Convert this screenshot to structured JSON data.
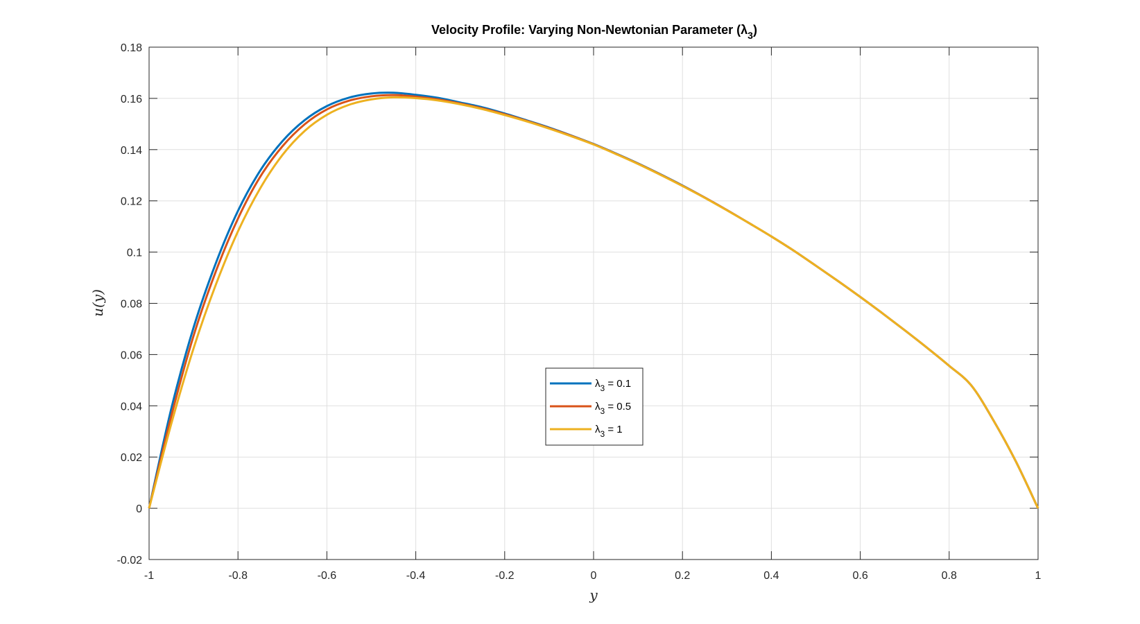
{
  "chart_data": {
    "type": "line",
    "title": "Velocity Profile: Varying Non-Newtonian Parameter (λ",
    "title_sub": "3",
    "title_end": ")",
    "xlabel": "y",
    "ylabel": "u(y)",
    "xlim": [
      -1,
      1
    ],
    "ylim": [
      -0.02,
      0.18
    ],
    "xticks": [
      -1,
      -0.8,
      -0.6,
      -0.4,
      -0.2,
      0,
      0.2,
      0.4,
      0.6,
      0.8,
      1
    ],
    "yticks": [
      -0.02,
      0,
      0.02,
      0.04,
      0.06,
      0.08,
      0.1,
      0.12,
      0.14,
      0.16,
      0.18
    ],
    "xtick_labels": [
      "-1",
      "-0.8",
      "-0.6",
      "-0.4",
      "-0.2",
      "0",
      "0.2",
      "0.4",
      "0.6",
      "0.8",
      "1"
    ],
    "ytick_labels": [
      "-0.02",
      "0",
      "0.02",
      "0.04",
      "0.06",
      "0.08",
      "0.1",
      "0.12",
      "0.14",
      "0.16",
      "0.18"
    ],
    "grid": true,
    "legend_position": "center",
    "series": [
      {
        "name": "λ3 = 0.1",
        "label_symbol": "λ",
        "label_sub": "3",
        "label_value": " = 0.1",
        "color": "#0072BD",
        "x": [
          -1,
          -0.95,
          -0.9,
          -0.85,
          -0.8,
          -0.75,
          -0.7,
          -0.65,
          -0.6,
          -0.55,
          -0.5,
          -0.45,
          -0.4,
          -0.35,
          -0.3,
          -0.25,
          -0.2,
          -0.15,
          -0.1,
          -0.05,
          0,
          0.05,
          0.1,
          0.15,
          0.2,
          0.25,
          0.3,
          0.35,
          0.4,
          0.45,
          0.5,
          0.55,
          0.6,
          0.65,
          0.7,
          0.75,
          0.8,
          0.85,
          0.9,
          0.95,
          1
        ],
        "y": [
          0,
          0.0389,
          0.0705,
          0.0956,
          0.1161,
          0.1318,
          0.1433,
          0.1515,
          0.157,
          0.1603,
          0.1619,
          0.1622,
          0.1614,
          0.1602,
          0.1584,
          0.1565,
          0.1541,
          0.1514,
          0.1486,
          0.1455,
          0.1422,
          0.1385,
          0.1346,
          0.1304,
          0.126,
          0.1213,
          0.1164,
          0.1113,
          0.1061,
          0.1006,
          0.0947,
          0.0887,
          0.0825,
          0.0761,
          0.0695,
          0.0627,
          0.0556,
          0.0479,
          0.0342,
          0.0183,
          0
        ]
      },
      {
        "name": "λ3 = 0.5",
        "label_symbol": "λ",
        "label_sub": "3",
        "label_value": " = 0.5",
        "color": "#D95319",
        "x": [
          -1,
          -0.95,
          -0.9,
          -0.85,
          -0.8,
          -0.75,
          -0.7,
          -0.65,
          -0.6,
          -0.55,
          -0.5,
          -0.45,
          -0.4,
          -0.35,
          -0.3,
          -0.25,
          -0.2,
          -0.15,
          -0.1,
          -0.05,
          0,
          0.05,
          0.1,
          0.15,
          0.2,
          0.25,
          0.3,
          0.35,
          0.4,
          0.45,
          0.5,
          0.55,
          0.6,
          0.65,
          0.7,
          0.75,
          0.8,
          0.85,
          0.9,
          0.95,
          1
        ],
        "y": [
          0,
          0.036,
          0.0673,
          0.0924,
          0.1131,
          0.1294,
          0.1413,
          0.1499,
          0.1557,
          0.1591,
          0.1608,
          0.1613,
          0.1607,
          0.1596,
          0.158,
          0.1561,
          0.1538,
          0.1512,
          0.1484,
          0.1454,
          0.1421,
          0.1384,
          0.1345,
          0.1303,
          0.1259,
          0.1213,
          0.1164,
          0.1113,
          0.1061,
          0.1006,
          0.0947,
          0.0887,
          0.0825,
          0.0761,
          0.0695,
          0.0627,
          0.0556,
          0.0479,
          0.0342,
          0.0183,
          0
        ]
      },
      {
        "name": "λ3 = 1",
        "label_symbol": "λ",
        "label_sub": "3",
        "label_value": " = 1",
        "color": "#EDB120",
        "x": [
          -1,
          -0.95,
          -0.9,
          -0.85,
          -0.8,
          -0.75,
          -0.7,
          -0.65,
          -0.6,
          -0.55,
          -0.5,
          -0.45,
          -0.4,
          -0.35,
          -0.3,
          -0.25,
          -0.2,
          -0.15,
          -0.1,
          -0.05,
          0,
          0.05,
          0.1,
          0.15,
          0.2,
          0.25,
          0.3,
          0.35,
          0.4,
          0.45,
          0.5,
          0.55,
          0.6,
          0.65,
          0.7,
          0.75,
          0.8,
          0.85,
          0.9,
          0.95,
          1
        ],
        "y": [
          0,
          0.033,
          0.0624,
          0.0872,
          0.1081,
          0.1249,
          0.1379,
          0.1473,
          0.1536,
          0.1575,
          0.1596,
          0.1604,
          0.1601,
          0.1592,
          0.1577,
          0.1558,
          0.1535,
          0.151,
          0.1482,
          0.1452,
          0.142,
          0.1383,
          0.1344,
          0.1302,
          0.1258,
          0.1212,
          0.1163,
          0.1113,
          0.1061,
          0.1006,
          0.0947,
          0.0887,
          0.0825,
          0.0761,
          0.0695,
          0.0627,
          0.0556,
          0.0479,
          0.0342,
          0.0183,
          0
        ]
      }
    ]
  }
}
